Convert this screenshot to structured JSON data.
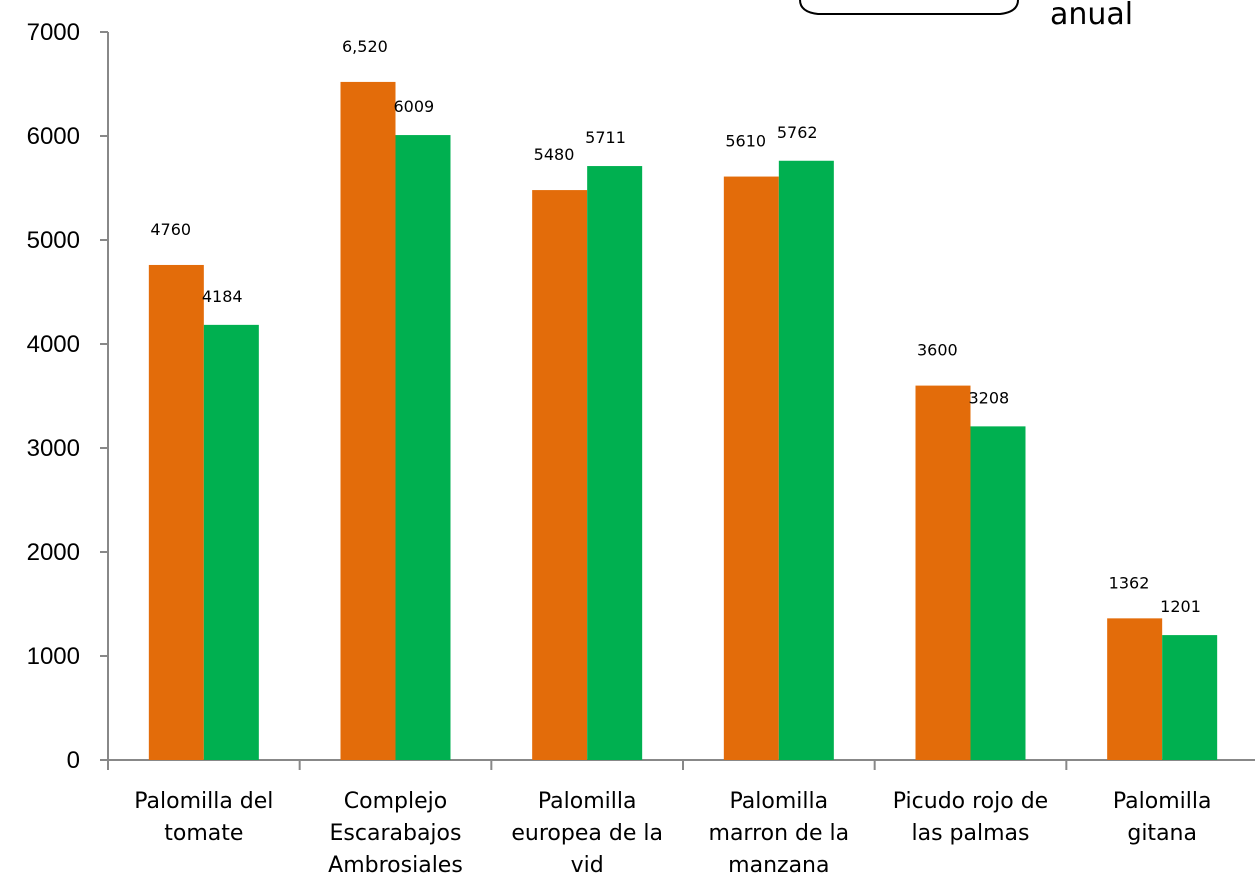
{
  "chart_data": {
    "type": "bar",
    "categories": [
      [
        "Palomilla del",
        "tomate"
      ],
      [
        "Complejo",
        "Escarabajos",
        "Ambrosiales"
      ],
      [
        "Palomilla",
        "europea de la",
        "vid"
      ],
      [
        "Palomilla",
        "marron de la",
        "manzana"
      ],
      [
        "Picudo rojo de",
        "las palmas"
      ],
      [
        "Palomilla",
        "gitana"
      ]
    ],
    "series": [
      {
        "color": "#E36C0A",
        "values": [
          4760,
          6520,
          5480,
          5610,
          3600,
          1362
        ],
        "labels": [
          "4760",
          "6,520",
          "5480",
          "5610",
          "3600",
          "1362"
        ]
      },
      {
        "color": "#00B050",
        "values": [
          4184,
          6009,
          5711,
          5762,
          3208,
          1201
        ],
        "labels": [
          "4184",
          "6009",
          "5711",
          "5762",
          "3208",
          "1201"
        ]
      }
    ],
    "ylim": [
      0,
      7000
    ],
    "yticks": [
      "0",
      "1000",
      "2000",
      "3000",
      "4000",
      "5000",
      "6000",
      "7000"
    ],
    "grid": false,
    "xlabel": "",
    "ylabel": ""
  },
  "legend_fragment": {
    "text": "anual"
  }
}
